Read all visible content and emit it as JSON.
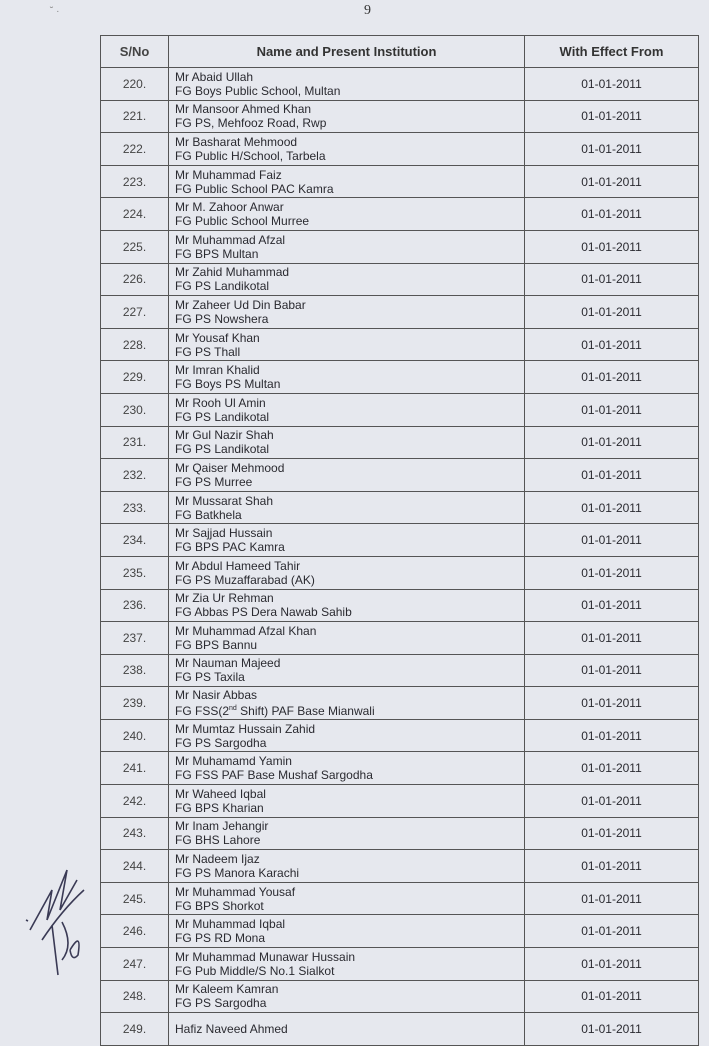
{
  "page_number": "9",
  "table": {
    "headers": [
      "S/No",
      "Name and Present Institution",
      "With Effect From"
    ],
    "rows": [
      {
        "sno": "220.",
        "name": "Mr Abaid Ullah",
        "institution": "FG Boys Public School, Multan",
        "date": "01-01-2011"
      },
      {
        "sno": "221.",
        "name": "Mr Mansoor Ahmed Khan",
        "institution": "FG PS, Mehfooz Road, Rwp",
        "date": "01-01-2011"
      },
      {
        "sno": "222.",
        "name": "Mr Basharat Mehmood",
        "institution": "FG Public H/School, Tarbela",
        "date": "01-01-2011"
      },
      {
        "sno": "223.",
        "name": "Mr Muhammad Faiz",
        "institution": "FG Public School PAC Kamra",
        "date": "01-01-2011"
      },
      {
        "sno": "224.",
        "name": "Mr M. Zahoor Anwar",
        "institution": "FG Public School Murree",
        "date": "01-01-2011"
      },
      {
        "sno": "225.",
        "name": "Mr Muhammad Afzal",
        "institution": "FG BPS Multan",
        "date": "01-01-2011"
      },
      {
        "sno": "226.",
        "name": "Mr Zahid Muhammad",
        "institution": "FG PS Landikotal",
        "date": "01-01-2011"
      },
      {
        "sno": "227.",
        "name": "Mr Zaheer Ud Din Babar",
        "institution": "FG PS Nowshera",
        "date": "01-01-2011"
      },
      {
        "sno": "228.",
        "name": "Mr Yousaf Khan",
        "institution": "FG PS Thall",
        "date": "01-01-2011"
      },
      {
        "sno": "229.",
        "name": "Mr Imran Khalid",
        "institution": "FG Boys PS Multan",
        "date": "01-01-2011"
      },
      {
        "sno": "230.",
        "name": "Mr Rooh Ul Amin",
        "institution": "FG PS Landikotal",
        "date": "01-01-2011"
      },
      {
        "sno": "231.",
        "name": "Mr Gul Nazir Shah",
        "institution": "FG PS Landikotal",
        "date": "01-01-2011"
      },
      {
        "sno": "232.",
        "name": "Mr Qaiser Mehmood",
        "institution": "FG PS Murree",
        "date": "01-01-2011"
      },
      {
        "sno": "233.",
        "name": "Mr Mussarat Shah",
        "institution": "FG Batkhela",
        "date": "01-01-2011"
      },
      {
        "sno": "234.",
        "name": "Mr Sajjad Hussain",
        "institution": "FG BPS PAC Kamra",
        "date": "01-01-2011"
      },
      {
        "sno": "235.",
        "name": "Mr Abdul Hameed Tahir",
        "institution": "FG PS Muzaffarabad (AK)",
        "date": "01-01-2011"
      },
      {
        "sno": "236.",
        "name": "Mr Zia Ur Rehman",
        "institution": "FG Abbas PS Dera Nawab Sahib",
        "date": "01-01-2011"
      },
      {
        "sno": "237.",
        "name": "Mr Muhammad Afzal Khan",
        "institution": "FG BPS Bannu",
        "date": "01-01-2011"
      },
      {
        "sno": "238.",
        "name": "Mr Nauman Majeed",
        "institution": "FG PS Taxila",
        "date": "01-01-2011"
      },
      {
        "sno": "239.",
        "name": "Mr Nasir Abbas",
        "institution": "FG FSS(2nd Shift) PAF Base Mianwali",
        "date": "01-01-2011"
      },
      {
        "sno": "240.",
        "name": "Mr Mumtaz Hussain Zahid",
        "institution": "FG PS Sargodha",
        "date": "01-01-2011"
      },
      {
        "sno": "241.",
        "name": "Mr Muhamamd Yamin",
        "institution": "FG FSS PAF Base Mushaf Sargodha",
        "date": "01-01-2011"
      },
      {
        "sno": "242.",
        "name": "Mr Waheed Iqbal",
        "institution": "FG BPS Kharian",
        "date": "01-01-2011"
      },
      {
        "sno": "243.",
        "name": "Mr Inam Jehangir",
        "institution": "FG BHS Lahore",
        "date": "01-01-2011"
      },
      {
        "sno": "244.",
        "name": "Mr Nadeem Ijaz",
        "institution": "FG PS Manora Karachi",
        "date": "01-01-2011"
      },
      {
        "sno": "245.",
        "name": "Mr Muhammad Yousaf",
        "institution": "FG BPS Shorkot",
        "date": "01-01-2011"
      },
      {
        "sno": "246.",
        "name": "Mr Muhammad Iqbal",
        "institution": "FG PS RD Mona",
        "date": "01-01-2011"
      },
      {
        "sno": "247.",
        "name": "Mr Muhammad Munawar Hussain",
        "institution": "FG Pub Middle/S No.1 Sialkot",
        "date": "01-01-2011"
      },
      {
        "sno": "248.",
        "name": "Mr Kaleem Kamran",
        "institution": "FG PS Sargodha",
        "date": "01-01-2011"
      },
      {
        "sno": "249.",
        "name": "Hafiz Naveed Ahmed",
        "institution": "",
        "date": "01-01-2011"
      }
    ]
  },
  "signature_text": "19/6"
}
